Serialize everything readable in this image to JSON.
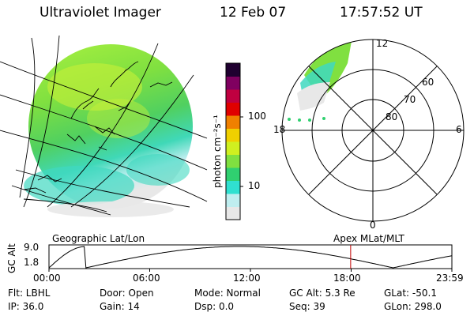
{
  "header": {
    "instrument": "Ultraviolet Imager",
    "date": "12 Feb 07",
    "time": "17:57:52 UT"
  },
  "colorbar": {
    "unit_label": "photon cm⁻²s⁻¹",
    "ticks": [
      {
        "label": "100",
        "value": 100
      },
      {
        "label": "10",
        "value": 10
      }
    ],
    "colors": [
      "#e8e8e8",
      "#bfeef0",
      "#30e0d0",
      "#30d070",
      "#80e040",
      "#d0f020",
      "#f0d000",
      "#f08000",
      "#e00000",
      "#c00040",
      "#800060",
      "#200030"
    ]
  },
  "polar_plot": {
    "mlt_labels": {
      "top": "12",
      "left": "18",
      "right": "6",
      "bottom": "0"
    },
    "lat_labels": [
      "60",
      "70",
      "80"
    ]
  },
  "map_labels": {
    "left": "Geographic Lat/Lon",
    "right": "Apex MLat/MLT"
  },
  "timeline": {
    "ylabel": "GC Alt",
    "y_ticks": [
      "9.0",
      "1.8"
    ],
    "x_ticks": [
      "00:00",
      "06:00",
      "12:00",
      "18:00",
      "23:59"
    ],
    "current_time_hours": 17.97,
    "marker_color": "#c00000"
  },
  "info": {
    "flt": "Flt: LBHL",
    "ip": "IP: 36.0",
    "door": "Door: Open",
    "gain": "Gain: 14",
    "mode": "Mode: Normal",
    "dsp": "Dsp:      0.0",
    "gcalt": "GC Alt: 5.3 Re",
    "seq": "Seq: 39",
    "glat": "GLat: -50.1",
    "glon": "GLon: 298.0"
  }
}
